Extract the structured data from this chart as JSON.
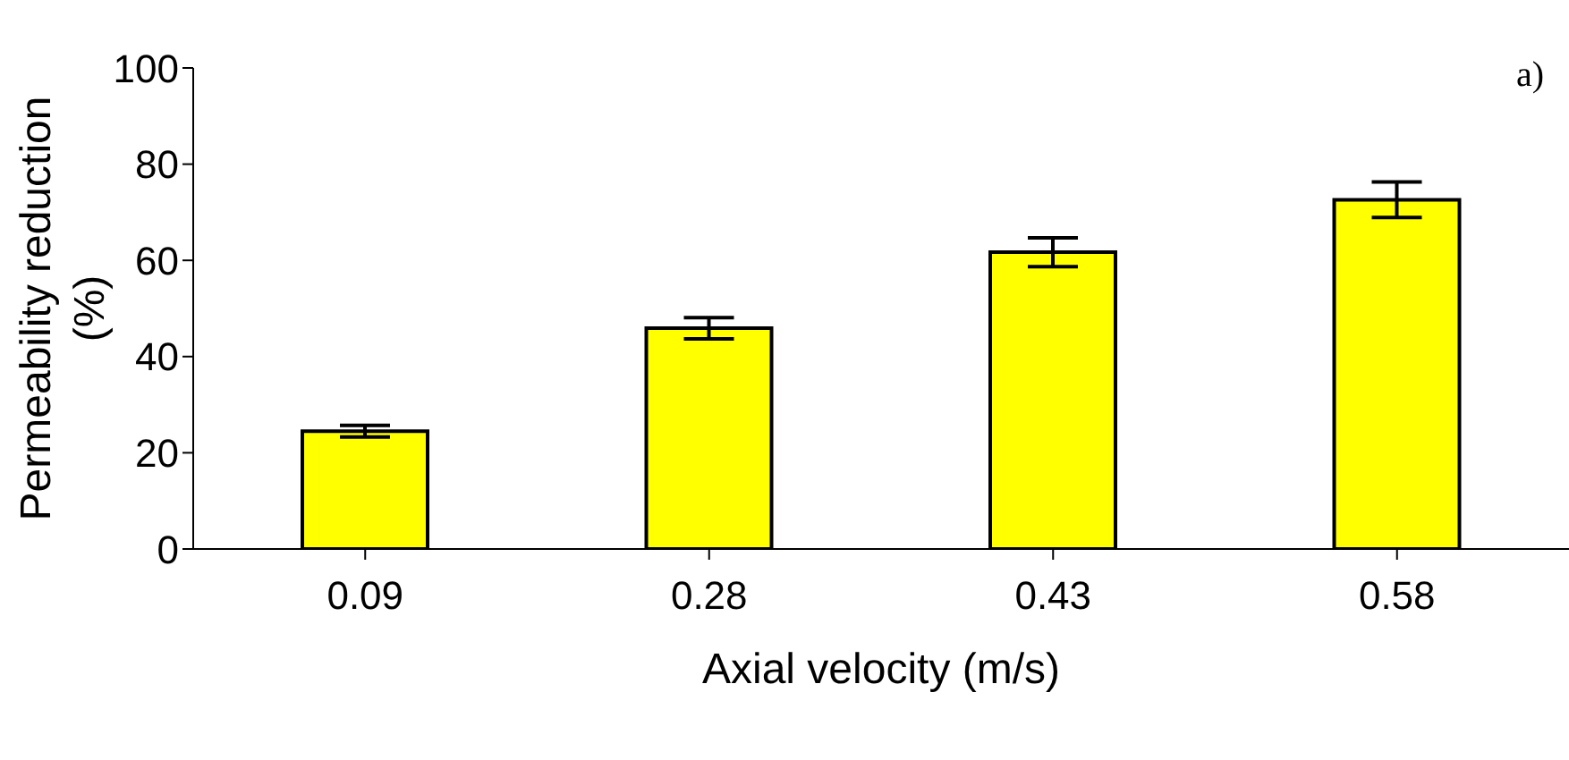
{
  "chart_data": {
    "type": "bar",
    "categories": [
      "0.09",
      "0.28",
      "0.43",
      "0.58"
    ],
    "values": [
      24.5,
      45.9,
      61.7,
      72.6
    ],
    "errors": [
      1.2,
      2.2,
      3,
      3.7
    ],
    "color": "#ffff00",
    "xlabel": "Axial velocity  (m/s)",
    "ylabel": "Permeability reduction (%)",
    "ylim": [
      0,
      100
    ],
    "yticks": [
      0,
      20,
      40,
      60,
      80,
      100
    ],
    "annotations": [
      "a)"
    ],
    "grid": false,
    "legend": false
  }
}
